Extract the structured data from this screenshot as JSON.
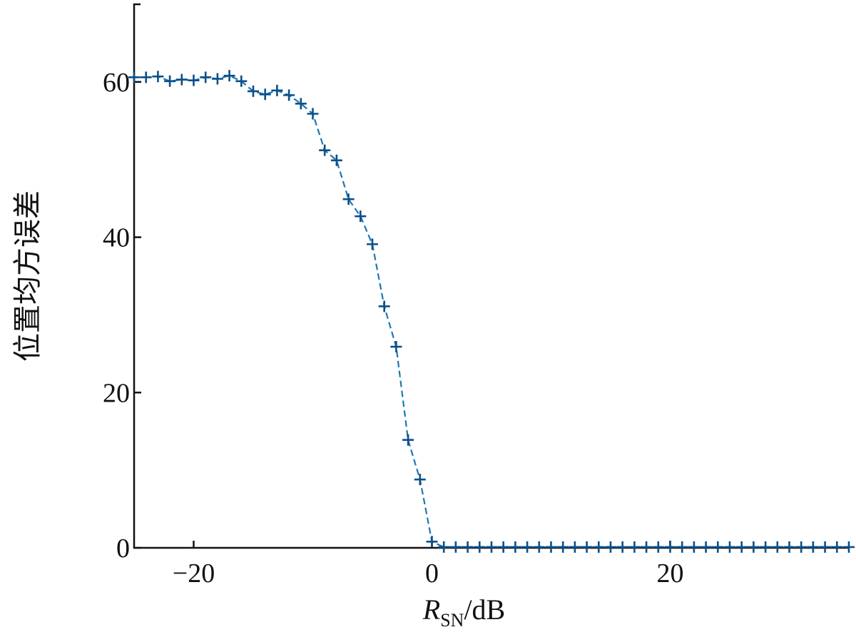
{
  "chart_data": {
    "type": "line",
    "xlabel": {
      "italic": "R",
      "subscript": "SN",
      "rest": "/dB"
    },
    "ylabel": "位置均方误差",
    "xlim": [
      -25,
      35
    ],
    "ylim": [
      0,
      70
    ],
    "xticks": [
      -20,
      0,
      20
    ],
    "xtick_labels": [
      "−20",
      "0",
      "20"
    ],
    "yticks": [
      0,
      20,
      40,
      60
    ],
    "ytick_labels": [
      "0",
      "20",
      "40",
      "60"
    ],
    "grid": false,
    "line_style": "dashed",
    "marker": "+",
    "colors": {
      "line": "#1f77b4",
      "marker": "#0b4f8a",
      "axis": "#111111"
    },
    "series": [
      {
        "x": [
          -25,
          -24,
          -23,
          -22,
          -21,
          -20,
          -19,
          -18,
          -17,
          -16,
          -15,
          -14,
          -13,
          -12,
          -11,
          -10,
          -9,
          -8,
          -7,
          -6,
          -5,
          -4,
          -3,
          -2,
          -1,
          0,
          1,
          2,
          3,
          4,
          5,
          6,
          7,
          8,
          9,
          10,
          11,
          12,
          13,
          14,
          15,
          16,
          17,
          18,
          19,
          20,
          21,
          22,
          23,
          24,
          25,
          26,
          27,
          28,
          29,
          30,
          31,
          32,
          33,
          34,
          35
        ],
        "y": [
          60.6,
          60.6,
          60.7,
          60.1,
          60.3,
          60.2,
          60.6,
          60.4,
          60.8,
          60.1,
          58.8,
          58.4,
          58.9,
          58.3,
          57.2,
          55.9,
          51.2,
          49.9,
          44.9,
          42.7,
          39.1,
          31.1,
          25.9,
          13.9,
          8.8,
          0.8,
          0.1,
          0.1,
          0.1,
          0.1,
          0.1,
          0.1,
          0.1,
          0.1,
          0.1,
          0.1,
          0.1,
          0.1,
          0.1,
          0.1,
          0.1,
          0.1,
          0.1,
          0.1,
          0.1,
          0.1,
          0.1,
          0.1,
          0.1,
          0.1,
          0.1,
          0.1,
          0.1,
          0.1,
          0.1,
          0.1,
          0.1,
          0.1,
          0.1,
          0.1,
          0.1
        ]
      }
    ]
  }
}
